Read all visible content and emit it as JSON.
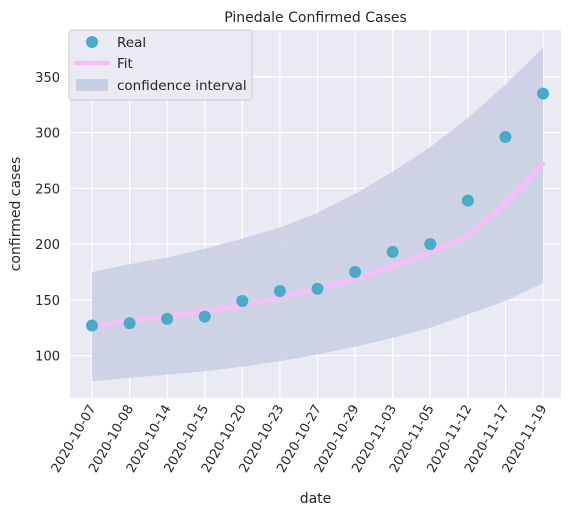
{
  "chart_data": {
    "type": "scatter",
    "title": "Pinedale Confirmed Cases",
    "xlabel": "date",
    "ylabel": "confirmed cases",
    "categories": [
      "2020-10-07",
      "2020-10-08",
      "2020-10-14",
      "2020-10-15",
      "2020-10-20",
      "2020-10-23",
      "2020-10-27",
      "2020-10-29",
      "2020-11-03",
      "2020-11-05",
      "2020-11-12",
      "2020-11-17",
      "2020-11-19"
    ],
    "ylim": [
      62,
      392
    ],
    "yticks": [
      100,
      150,
      200,
      250,
      300,
      350
    ],
    "grid": true,
    "legend_position": "top-left",
    "series": [
      {
        "name": "Real",
        "kind": "points",
        "color": "#4aabc8",
        "values": [
          127,
          129,
          133,
          135,
          149,
          158,
          160,
          175,
          193,
          200,
          239,
          296,
          335
        ]
      },
      {
        "name": "Fit",
        "kind": "line",
        "color": "#fbbcfb",
        "values": [
          127,
          131,
          135,
          140,
          145,
          152,
          160,
          169,
          180,
          193,
          208,
          237,
          272
        ]
      },
      {
        "name": "confidence interval",
        "kind": "band",
        "color": "#c8cfe3",
        "lower": [
          77,
          80,
          83,
          86,
          90,
          95,
          101,
          108,
          116,
          125,
          137,
          149,
          165
        ],
        "upper": [
          175,
          182,
          188,
          196,
          205,
          215,
          228,
          245,
          265,
          287,
          313,
          343,
          376
        ]
      }
    ]
  }
}
